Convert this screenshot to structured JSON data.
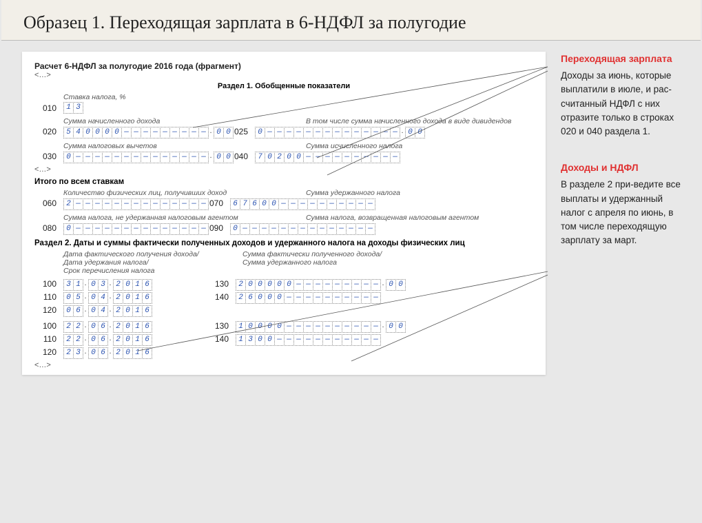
{
  "title": "Образец 1. Переходящая зарплата в 6-НДФЛ за полугодие",
  "form": {
    "header": "Расчет 6-НДФЛ за полугодие 2016 года (фрагмент)",
    "section1_title": "Раздел 1. Обобщенные показатели",
    "labels": {
      "stavka": "Ставка налога, %",
      "summa_dohoda": "Сумма начисленного дохода",
      "v_tom_chisle_div": "В том числе сумма начисленного дохода в виде дивидендов",
      "summa_vychetov": "Сумма налоговых вычетов",
      "summa_isch_naloga": "Сумма исчисленного налога",
      "itogo": "Итого по всем ставкам",
      "kolvo_lic": "Количество физических лиц, получивших доход",
      "summa_uderzh": "Сумма удержанного налога",
      "summa_ne_uderzh": "Сумма налога, не удержанная налоговым агентом",
      "summa_vozvr": "Сумма налога, возвращенная налоговым агентом",
      "date_fact": "Дата фактического получения дохода/",
      "date_uderzh": "Дата удержания налога/",
      "srok_perech": "Срок перечисления налога",
      "summa_fact": "Сумма фактически полученного дохода/",
      "summa_uderzh_naloga": "Сумма удержанного налога"
    },
    "section2_title": "Раздел 2. Даты и суммы фактически полученных доходов и удержанного налога на доходы физических лиц",
    "rows": {
      "r010": {
        "code": "010",
        "v": [
          "1",
          "3"
        ]
      },
      "r020": {
        "code": "020",
        "int": [
          "5",
          "4",
          "0",
          "0",
          "0",
          "0"
        ],
        "intLen": 15,
        "dec": [
          "0",
          "0"
        ]
      },
      "r025": {
        "code": "025",
        "int": [
          "0"
        ],
        "intLen": 15,
        "dec": [
          "0",
          "0"
        ]
      },
      "r030": {
        "code": "030",
        "int": [
          "0"
        ],
        "intLen": 15,
        "dec": [
          "0",
          "0"
        ]
      },
      "r040": {
        "code": "040",
        "int": [
          "7",
          "0",
          "2",
          "0",
          "0"
        ],
        "intLen": 15
      },
      "r060": {
        "code": "060",
        "int": [
          "2"
        ],
        "intLen": 15
      },
      "r070": {
        "code": "070",
        "int": [
          "6",
          "7",
          "6",
          "0",
          "0"
        ],
        "intLen": 15
      },
      "r080": {
        "code": "080",
        "int": [
          "0"
        ],
        "intLen": 15
      },
      "r090": {
        "code": "090",
        "int": [
          "0"
        ],
        "intLen": 15
      },
      "block1": {
        "r100": {
          "code": "100",
          "date": [
            "3",
            "1",
            "0",
            "3",
            "2",
            "0",
            "1",
            "6"
          ]
        },
        "r110": {
          "code": "110",
          "date": [
            "0",
            "5",
            "0",
            "4",
            "2",
            "0",
            "1",
            "6"
          ]
        },
        "r120": {
          "code": "120",
          "date": [
            "0",
            "6",
            "0",
            "4",
            "2",
            "0",
            "1",
            "6"
          ]
        },
        "r130": {
          "code": "130",
          "int": [
            "2",
            "0",
            "0",
            "0",
            "0",
            "0"
          ],
          "intLen": 15,
          "dec": [
            "0",
            "0"
          ]
        },
        "r140": {
          "code": "140",
          "int": [
            "2",
            "6",
            "0",
            "0",
            "0"
          ],
          "intLen": 15
        }
      },
      "block2": {
        "r100": {
          "code": "100",
          "date": [
            "2",
            "2",
            "0",
            "6",
            "2",
            "0",
            "1",
            "6"
          ]
        },
        "r110": {
          "code": "110",
          "date": [
            "2",
            "2",
            "0",
            "6",
            "2",
            "0",
            "1",
            "6"
          ]
        },
        "r120": {
          "code": "120",
          "date": [
            "2",
            "3",
            "0",
            "6",
            "2",
            "0",
            "1",
            "6"
          ]
        },
        "r130": {
          "code": "130",
          "int": [
            "1",
            "0",
            "0",
            "0",
            "0"
          ],
          "intLen": 15,
          "dec": [
            "0",
            "0"
          ]
        },
        "r140": {
          "code": "140",
          "int": [
            "1",
            "3",
            "0",
            "0"
          ],
          "intLen": 15
        }
      }
    }
  },
  "notes": {
    "n1": {
      "title": "Переходящая зарплата",
      "body": "Доходы за июнь, которые выплатили в июле, и рас-считанный НДФЛ с них отразите только в строках 020 и 040 раздела 1."
    },
    "n2": {
      "title": "Доходы и НДФЛ",
      "body": "В разделе 2 при-ведите все выплаты и удержанный налог с апреля по июнь, в том числе переходящую зарплату за март."
    }
  },
  "ellipsis": "<…>"
}
